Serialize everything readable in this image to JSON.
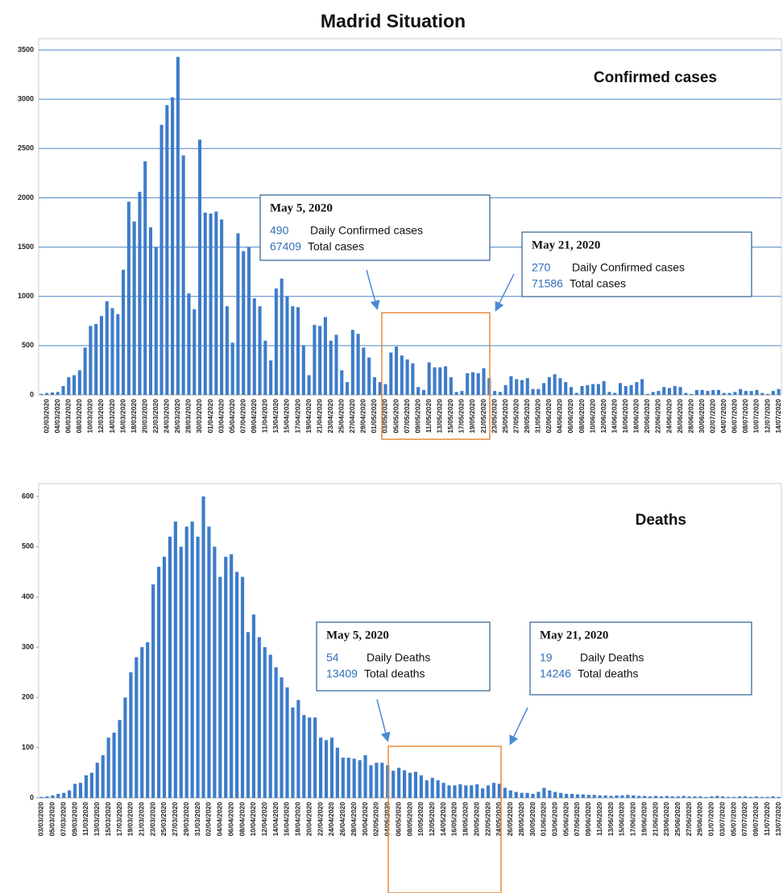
{
  "title": "Madrid Situation",
  "chart_data": [
    {
      "type": "bar",
      "title": "Confirmed cases",
      "color": "#3d7cc9",
      "grid": true,
      "ylim": [
        0,
        3500
      ],
      "yticks": [
        0,
        500,
        1000,
        1500,
        2000,
        2500,
        3000,
        3500
      ],
      "categories": [
        null,
        "02/03/2020",
        null,
        "04/03/2020",
        null,
        "06/03/2020",
        null,
        "08/03/2020",
        null,
        "10/03/2020",
        null,
        "12/03/2020",
        null,
        "14/03/2020",
        null,
        "16/03/2020",
        null,
        "18/03/2020",
        null,
        "20/03/2020",
        null,
        "22/03/2020",
        null,
        "24/03/2020",
        null,
        "26/03/2020",
        null,
        "28/03/2020",
        null,
        "30/03/2020",
        null,
        "01/04/2020",
        null,
        "03/04/2020",
        null,
        "05/04/2020",
        null,
        "07/04/2020",
        null,
        "09/04/2020",
        null,
        "11/04/2020",
        null,
        "13/04/2020",
        null,
        "15/04/2020",
        null,
        "17/04/2020",
        null,
        "19/04/2020",
        null,
        "21/04/2020",
        null,
        "23/04/2020",
        null,
        "25/04/2020",
        null,
        "27/04/2020",
        null,
        "29/04/2020",
        null,
        "01/05/2020",
        null,
        "03/05/2020",
        null,
        "05/05/2020",
        null,
        "07/05/2020",
        null,
        "09/05/2020",
        null,
        "11/05/2020",
        null,
        "13/05/2020",
        null,
        "15/05/2020",
        null,
        "17/05/2020",
        null,
        "19/05/2020",
        null,
        "21/05/2020",
        null,
        "23/05/2020",
        null,
        "25/05/2020",
        null,
        "27/05/2020",
        null,
        "29/05/2020",
        null,
        "31/05/2020",
        null,
        "02/06/2020",
        null,
        "04/06/2020",
        null,
        "06/06/2020",
        null,
        "08/06/2020",
        null,
        "10/06/2020",
        null,
        "12/06/2020",
        null,
        "14/06/2020",
        null,
        "16/06/2020",
        null,
        "18/06/2020",
        null,
        "20/06/2020",
        null,
        "22/06/2020",
        null,
        "24/06/2020",
        null,
        "26/06/2020",
        null,
        "28/06/2020",
        null,
        "30/06/2020",
        null,
        "02/07/2020",
        null,
        "04/07/2020",
        null,
        "06/07/2020",
        null,
        "08/07/2020",
        null,
        "10/07/2020",
        null,
        "12/07/2020",
        null,
        "14/07/2020"
      ],
      "values": [
        10,
        20,
        25,
        30,
        90,
        180,
        200,
        250,
        480,
        700,
        720,
        800,
        950,
        880,
        820,
        1270,
        1960,
        1760,
        2060,
        2370,
        1700,
        1500,
        2740,
        2940,
        3020,
        3430,
        2430,
        1030,
        870,
        2590,
        1850,
        1840,
        1860,
        1780,
        900,
        530,
        1640,
        1460,
        1500,
        980,
        900,
        550,
        350,
        1080,
        1180,
        1000,
        900,
        890,
        500,
        200,
        710,
        700,
        790,
        550,
        610,
        250,
        130,
        660,
        620,
        480,
        380,
        180,
        130,
        110,
        430,
        490,
        400,
        360,
        320,
        80,
        50,
        330,
        280,
        280,
        290,
        180,
        30,
        40,
        220,
        230,
        220,
        270,
        170,
        40,
        30,
        100,
        190,
        160,
        150,
        170,
        60,
        60,
        120,
        180,
        210,
        170,
        130,
        80,
        20,
        90,
        100,
        110,
        110,
        140,
        30,
        20,
        120,
        90,
        100,
        130,
        160,
        10,
        30,
        40,
        80,
        70,
        90,
        80,
        20,
        10,
        50,
        50,
        40,
        50,
        50,
        20,
        20,
        30,
        60,
        40,
        40,
        50,
        20,
        10,
        40,
        60
      ],
      "annotations": [
        {
          "date": "May 5, 2020",
          "lines": [
            {
              "number": 490,
              "text": "Daily Confirmed cases"
            },
            {
              "number": 67409,
              "text": "Total cases"
            }
          ]
        },
        {
          "date": "May 21, 2020",
          "lines": [
            {
              "number": 270,
              "text": "Daily Confirmed cases"
            },
            {
              "number": 71586,
              "text": "Total cases"
            }
          ]
        }
      ]
    },
    {
      "type": "bar",
      "title": "Deaths",
      "color": "#3d7cc9",
      "grid": false,
      "ylim": [
        0,
        600
      ],
      "yticks": [
        0,
        100,
        200,
        300,
        400,
        500,
        600
      ],
      "categories": [
        "03/03/2020",
        null,
        "05/03/2020",
        null,
        "07/03/2020",
        null,
        "09/03/2020",
        null,
        "11/03/2020",
        null,
        "13/03/2020",
        null,
        "15/03/2020",
        null,
        "17/03/2020",
        null,
        "19/03/2020",
        null,
        "21/03/2020",
        null,
        "23/03/2020",
        null,
        "25/03/2020",
        null,
        "27/03/2020",
        null,
        "29/03/2020",
        null,
        "31/03/2020",
        null,
        "02/04/2020",
        null,
        "04/04/2020",
        null,
        "06/04/2020",
        null,
        "08/04/2020",
        null,
        "10/04/2020",
        null,
        "12/04/2020",
        null,
        "14/04/2020",
        null,
        "16/04/2020",
        null,
        "18/04/2020",
        null,
        "20/04/2020",
        null,
        "22/04/2020",
        null,
        "24/04/2020",
        null,
        "26/04/2020",
        null,
        "28/04/2020",
        null,
        "30/04/2020",
        null,
        "02/05/2020",
        null,
        "04/05/2020",
        null,
        "06/05/2020",
        null,
        "08/05/2020",
        null,
        "10/05/2020",
        null,
        "12/05/2020",
        null,
        "14/05/2020",
        null,
        "16/05/2020",
        null,
        "18/05/2020",
        null,
        "20/05/2020",
        null,
        "22/05/2020",
        null,
        "24/05/2020",
        null,
        "26/05/2020",
        null,
        "28/05/2020",
        null,
        "30/05/2020",
        null,
        "01/06/2020",
        null,
        "03/06/2020",
        null,
        "05/06/2020",
        null,
        "07/06/2020",
        null,
        "09/06/2020",
        null,
        "11/06/2020",
        null,
        "13/06/2020",
        null,
        "15/06/2020",
        null,
        "17/06/2020",
        null,
        "19/06/2020",
        null,
        "21/06/2020",
        null,
        "23/06/2020",
        null,
        "25/06/2020",
        null,
        "27/06/2020",
        null,
        "29/06/2020",
        null,
        "01/07/2020",
        null,
        "03/07/2020",
        null,
        "05/07/2020",
        null,
        "07/07/2020",
        null,
        "09/07/2020",
        null,
        "11/07/2020",
        null,
        "13/07/2020"
      ],
      "values": [
        2,
        3,
        5,
        8,
        10,
        15,
        28,
        30,
        45,
        50,
        70,
        85,
        120,
        130,
        155,
        200,
        250,
        280,
        300,
        310,
        425,
        460,
        480,
        520,
        550,
        500,
        540,
        550,
        520,
        600,
        540,
        500,
        440,
        480,
        485,
        450,
        440,
        330,
        365,
        320,
        300,
        285,
        260,
        240,
        220,
        180,
        195,
        165,
        160,
        160,
        120,
        115,
        120,
        100,
        80,
        80,
        78,
        75,
        85,
        65,
        70,
        70,
        65,
        54,
        60,
        55,
        50,
        52,
        45,
        35,
        40,
        35,
        30,
        25,
        25,
        27,
        25,
        25,
        27,
        19,
        25,
        30,
        28,
        20,
        15,
        12,
        10,
        10,
        8,
        12,
        20,
        15,
        12,
        10,
        8,
        8,
        7,
        7,
        6,
        6,
        5,
        5,
        4,
        5,
        5,
        6,
        5,
        4,
        4,
        3,
        4,
        3,
        4,
        3,
        3,
        4,
        3,
        3,
        3,
        2,
        3,
        4,
        3,
        2,
        2,
        3,
        3,
        2,
        3,
        2,
        2,
        3,
        2
      ],
      "annotations": [
        {
          "date": "May 5, 2020",
          "lines": [
            {
              "number": 54,
              "text": "Daily Deaths"
            },
            {
              "number": 13409,
              "text": "Total deaths"
            }
          ]
        },
        {
          "date": "May 21, 2020",
          "lines": [
            {
              "number": 19,
              "text": "Daily Deaths"
            },
            {
              "number": 14246,
              "text": "Total deaths"
            }
          ]
        }
      ]
    }
  ]
}
